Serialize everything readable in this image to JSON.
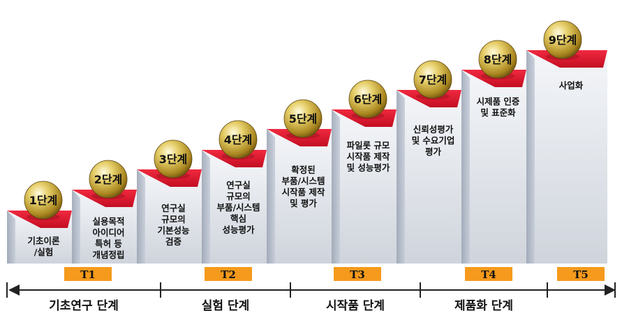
{
  "steps": [
    {
      "label": "1단계",
      "lines": [
        "기초이론",
        "/실험"
      ]
    },
    {
      "label": "2단계",
      "lines": [
        "실용목적",
        "아이디어",
        "특허 등",
        "개념정립"
      ]
    },
    {
      "label": "3단계",
      "lines": [
        "연구실",
        "규모의",
        "기본성능",
        "검증"
      ]
    },
    {
      "label": "4단계",
      "lines": [
        "연구실",
        "규모의",
        "부품/시스템",
        "핵심",
        "성능평가"
      ]
    },
    {
      "label": "5단계",
      "lines": [
        "확정된",
        "부품/시스템",
        "시작품 제작",
        "및 평가"
      ]
    },
    {
      "label": "6단계",
      "lines": [
        "파일롯 규모",
        "시작품 제작",
        "및 성능평가"
      ]
    },
    {
      "label": "7단계",
      "lines": [
        "신뢰성평가",
        "및 수요기업",
        "평가"
      ]
    },
    {
      "label": "8단계",
      "lines": [
        "시제품 인증",
        "및 표준화"
      ]
    },
    {
      "label": "9단계",
      "lines": [
        "사업화"
      ]
    }
  ],
  "stages": [
    {
      "tag": "T1",
      "phase": "기초연구 단계"
    },
    {
      "tag": "T2",
      "phase": "실험 단계"
    },
    {
      "tag": "T3",
      "phase": "시작품 단계"
    },
    {
      "tag": "T4",
      "phase": "제품화 단계"
    },
    {
      "tag": "T5",
      "phase": ""
    }
  ],
  "colors": {
    "step_top": "#e8172d",
    "step_front": "#dfe3ea",
    "ball": "#c8a83a",
    "tag_bg": "#f59a1c",
    "line": "#222222"
  }
}
